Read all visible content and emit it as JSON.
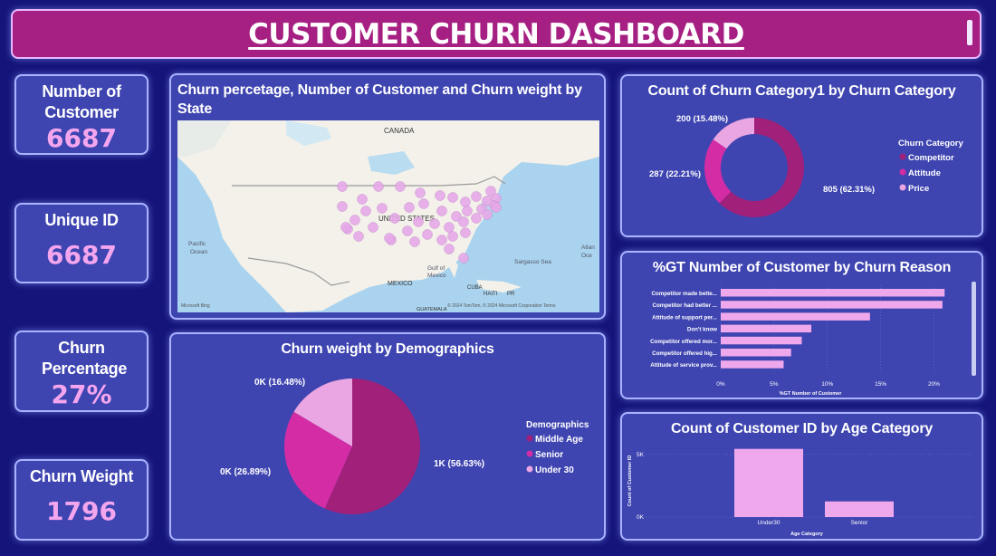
{
  "header": {
    "title": "CUSTOMER CHURN DASHBOARD"
  },
  "kpis": [
    {
      "label": "Number of Customer",
      "value": "6687"
    },
    {
      "label": "Unique ID",
      "value": "6687"
    },
    {
      "label": "Churn Percentage",
      "value": "27%"
    },
    {
      "label": "Churn Weight",
      "value": "1796"
    }
  ],
  "map": {
    "title": "Churn percetage, Number of Customer and Churn weight by State",
    "labels": {
      "canada": "CANADA",
      "us": "UNITED STATES",
      "mexico": "MEXICO",
      "cuba": "CUBA",
      "haiti": "HAITI",
      "pr": "PR",
      "guatemala": "GUATEMALA",
      "pacific": "Pacific",
      "ocean": "Ocean",
      "gulf": "Gulf of",
      "mexico2": "Mexico",
      "sargasso": "Sargasso Sea",
      "atlantic": "Atlan",
      "oc": "Oce",
      "microsoft": "Microsoft Bing",
      "copyright": "© 2024 TomTom, © 2024 Microsoft Corporation Terms"
    },
    "bubble_color": "#e6a8e8"
  },
  "colors": {
    "middle_age": "#a0207a",
    "senior": "#d42ca5",
    "under30": "#eaa6e2",
    "competitor": "#a0207a",
    "attitude": "#d42ca5",
    "price": "#eaa6e2",
    "bar": "#f0a8ec"
  },
  "chart_data": [
    {
      "type": "pie",
      "title": "Churn weight by Demographics",
      "legend_title": "Demographics",
      "legend_position": "right",
      "slices": [
        {
          "name": "Middle Age",
          "label": "1K (56.63%)",
          "percent": 56.63
        },
        {
          "name": "Senior",
          "label": "0K (26.89%)",
          "percent": 26.89
        },
        {
          "name": "Under 30",
          "label": "0K (16.48%)",
          "percent": 16.48
        }
      ]
    },
    {
      "type": "pie",
      "subtype": "donut",
      "title": "Count of Churn Category1 by Churn Category",
      "legend_title": "Churn Category",
      "legend_position": "right",
      "slices": [
        {
          "name": "Competitor",
          "label": "805 (62.31%)",
          "value": 805,
          "percent": 62.31
        },
        {
          "name": "Attitude",
          "label": "287 (22.21%)",
          "value": 287,
          "percent": 22.21
        },
        {
          "name": "Price",
          "label": "200 (15.48%)",
          "value": 200,
          "percent": 15.48
        }
      ]
    },
    {
      "type": "bar",
      "orientation": "horizontal",
      "title": "%GT Number of Customer by Churn Reason",
      "xlabel": "%GT Number of Customer",
      "xlim": [
        0,
        22
      ],
      "xticks": [
        "0%",
        "5%",
        "10%",
        "15%",
        "20%"
      ],
      "xtick_values": [
        0,
        5,
        10,
        15,
        20
      ],
      "categories": [
        "Competitor made bette...",
        "Competitor had better ...",
        "Attitude of support per...",
        "Don't know",
        "Competitor offered mor...",
        "Competitor offered hig...",
        "Attitude of service prov..."
      ],
      "values": [
        21.0,
        20.8,
        14.0,
        8.5,
        7.6,
        6.6,
        5.9
      ]
    },
    {
      "type": "bar",
      "title": "Count of Customer ID by Age Category",
      "xlabel": "Age Category",
      "ylabel": "Count of Customer ID",
      "ylim": [
        0,
        5500
      ],
      "yticks": [
        "0K",
        "5K"
      ],
      "ytick_values": [
        0,
        5000
      ],
      "categories": [
        "Under30",
        "Senior"
      ],
      "values": [
        5450,
        1250
      ]
    }
  ]
}
